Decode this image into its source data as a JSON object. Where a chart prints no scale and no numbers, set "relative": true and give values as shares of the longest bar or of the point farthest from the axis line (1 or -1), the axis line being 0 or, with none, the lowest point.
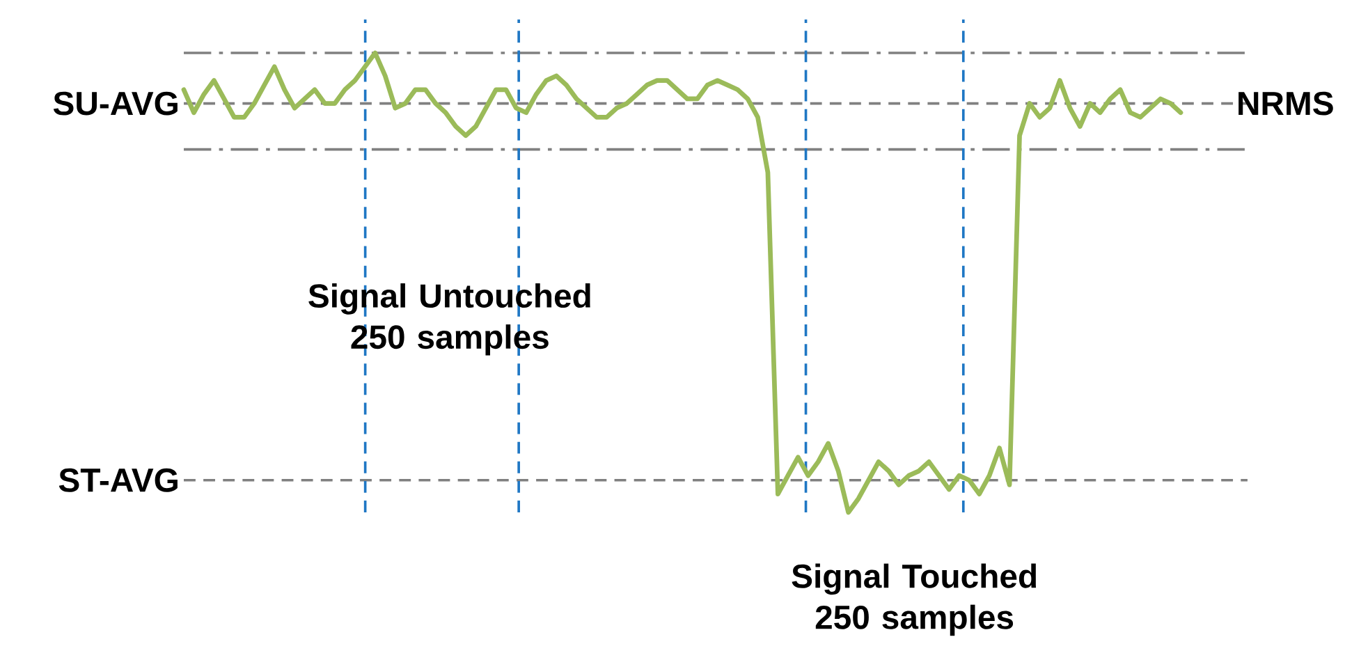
{
  "chart_data": {
    "type": "line",
    "relative": true,
    "marker": "none",
    "line_style": "solid",
    "categories": [
      null,
      null,
      null,
      null,
      null,
      null,
      null,
      null,
      null,
      null,
      null,
      null,
      null,
      null,
      null,
      null,
      null,
      null,
      null,
      null,
      null,
      null,
      null,
      null,
      null,
      null,
      null,
      null,
      null,
      null,
      null,
      null,
      null,
      null,
      null,
      null,
      null,
      null,
      null,
      null,
      null,
      null,
      null,
      null,
      null,
      null,
      null,
      null,
      null,
      null,
      null,
      null,
      null,
      null,
      null,
      null,
      null,
      null,
      null,
      null,
      null,
      null,
      null,
      null,
      null,
      null,
      null,
      null,
      null,
      null,
      null,
      null,
      null,
      null,
      null,
      null,
      null,
      null,
      null,
      null,
      null,
      null,
      null,
      null,
      null,
      null,
      null,
      null,
      null,
      null,
      null,
      null,
      null,
      null,
      null,
      null,
      null,
      null,
      null,
      null
    ],
    "series": [
      {
        "color": "#9bbb59",
        "values": [
          0.92,
          0.87,
          0.91,
          0.94,
          0.9,
          0.86,
          0.86,
          0.89,
          0.93,
          0.97,
          0.92,
          0.88,
          0.9,
          0.92,
          0.89,
          0.89,
          0.92,
          0.94,
          0.97,
          1.0,
          0.95,
          0.88,
          0.89,
          0.92,
          0.92,
          0.89,
          0.87,
          0.84,
          0.82,
          0.84,
          0.88,
          0.92,
          0.92,
          0.88,
          0.87,
          0.91,
          0.94,
          0.95,
          0.93,
          0.9,
          0.88,
          0.86,
          0.86,
          0.88,
          0.89,
          0.91,
          0.93,
          0.94,
          0.94,
          0.92,
          0.9,
          0.9,
          0.93,
          0.94,
          0.93,
          0.92,
          0.9,
          0.86,
          0.74,
          0.04,
          0.08,
          0.12,
          0.08,
          0.11,
          0.15,
          0.09,
          0.0,
          0.03,
          0.07,
          0.11,
          0.09,
          0.06,
          0.08,
          0.09,
          0.11,
          0.08,
          0.05,
          0.08,
          0.07,
          0.04,
          0.08,
          0.14,
          0.06,
          0.82,
          0.89,
          0.86,
          0.88,
          0.94,
          0.88,
          0.84,
          0.89,
          0.87,
          0.9,
          0.92,
          0.87,
          0.86,
          0.88,
          0.9,
          0.89,
          0.87
        ]
      }
    ],
    "ref_lines": [
      {
        "axis": "y",
        "value": 0.89,
        "label": "SU-AVG",
        "color": "#808080",
        "line_style": "dashed"
      },
      {
        "axis": "y",
        "value": 0.07,
        "label": "ST-AVG",
        "color": "#808080",
        "line_style": "dashed"
      },
      {
        "axis": "y",
        "value": 1.0,
        "color": "#808080",
        "line_style": "dashdot"
      },
      {
        "axis": "y",
        "value": 0.79,
        "color": "#808080",
        "line_style": "dashdot"
      }
    ],
    "annotations": [
      "Signal Untouched 250 samples",
      "Signal Touched 250 samples",
      "NRMS"
    ]
  }
}
